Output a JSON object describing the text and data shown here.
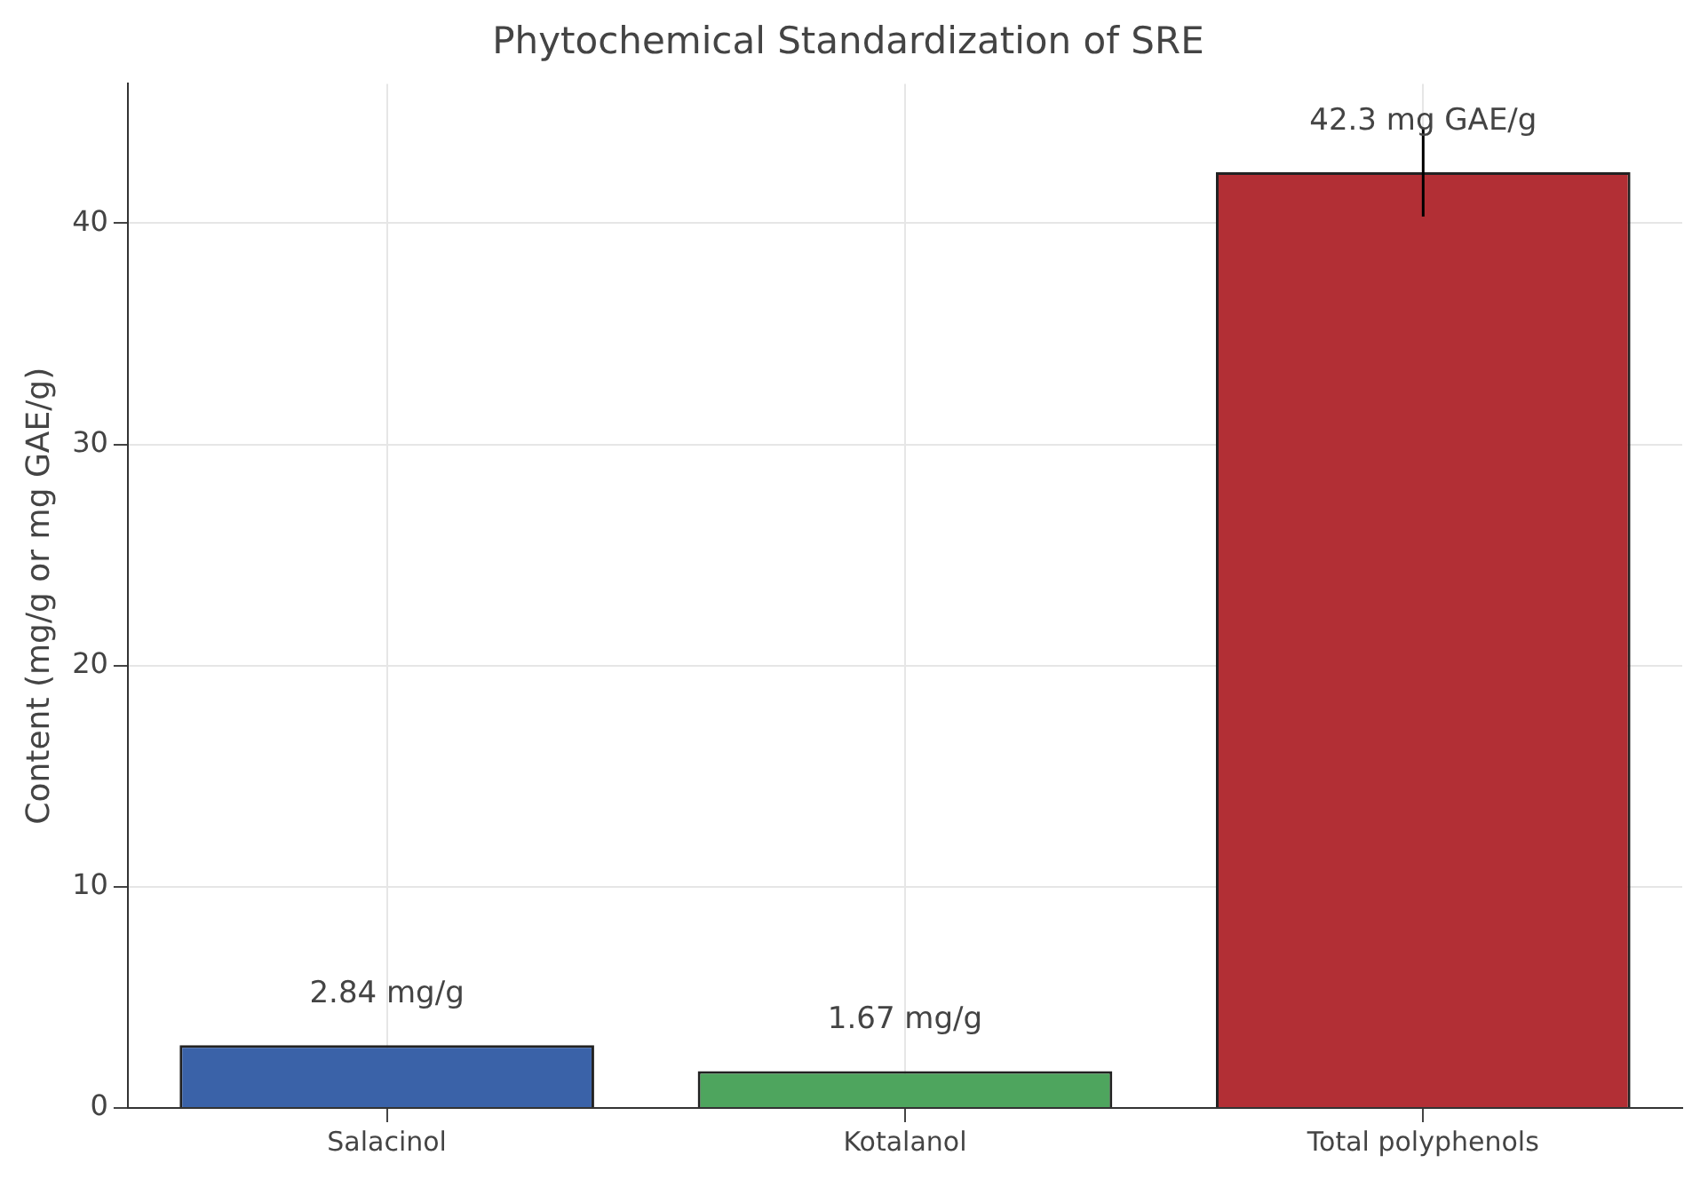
{
  "chart_data": {
    "type": "bar",
    "title": "Phytochemical Standardization of SRE",
    "ylabel": "Content (mg/g or mg GAE/g)",
    "categories": [
      "Salacinol",
      "Kotalanol",
      "Total polyphenols"
    ],
    "values": [
      2.84,
      1.67,
      42.3
    ],
    "colors": [
      "#3a62a8",
      "#4ea55e",
      "#b22f35"
    ],
    "errors": [
      null,
      null,
      2
    ],
    "value_labels": [
      "2.84 mg/g",
      "1.67 mg/g",
      "42.3 mg GAE/g"
    ],
    "ylim": [
      0,
      46.3
    ],
    "yticks": [
      0,
      10,
      20,
      30,
      40
    ],
    "grid": true
  }
}
